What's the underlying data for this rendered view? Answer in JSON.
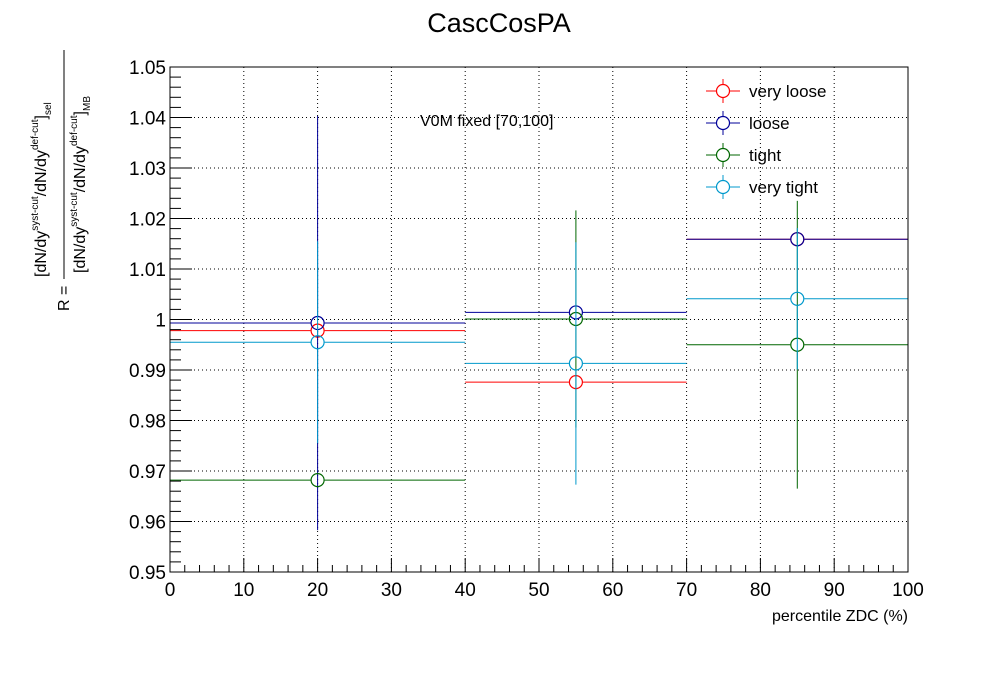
{
  "chart_data": {
    "type": "scatter",
    "title": "CascCosPA",
    "xlabel": "percentile ZDC (%)",
    "ylabel": {
      "prefix": "R =",
      "numerator": [
        "[dN/dy",
        "syst-cut",
        "/dN/dy",
        "def-cut",
        "]",
        "sel"
      ],
      "denominator": [
        "[dN/dy",
        "syst-cut",
        "/dN/dy",
        "def-cut",
        "]",
        "MB"
      ]
    },
    "annotation": "V0M fixed [70,100]",
    "xlim": [
      0,
      100
    ],
    "ylim": [
      0.95,
      1.05
    ],
    "xticks": [
      "0",
      "10",
      "20",
      "30",
      "40",
      "50",
      "60",
      "70",
      "80",
      "90",
      "100"
    ],
    "yticks": [
      "0.95",
      "0.96",
      "0.97",
      "0.98",
      "0.99",
      "1",
      "1.01",
      "1.02",
      "1.03",
      "1.04",
      "1.05"
    ],
    "grid": true,
    "legend_position": "top-right",
    "bins": [
      [
        0,
        40
      ],
      [
        40,
        70
      ],
      [
        70,
        100
      ]
    ],
    "x": [
      20,
      55,
      85
    ],
    "series": [
      {
        "name": "very loose",
        "color": "#ff0000",
        "y": [
          0.9978,
          0.9876,
          1.0159
        ],
        "yerr": [
          0.0,
          0.0,
          0.0
        ]
      },
      {
        "name": "loose",
        "color": "#000099",
        "y": [
          0.9993,
          1.0014,
          1.0159
        ],
        "yerr": [
          0.041,
          0.0,
          0.0
        ]
      },
      {
        "name": "tight",
        "color": "#006600",
        "y": [
          0.9682,
          1.0001,
          0.995
        ],
        "yerr": [
          0.0,
          0.0215,
          0.0285
        ]
      },
      {
        "name": "very tight",
        "color": "#0099cc",
        "y": [
          0.9955,
          0.9913,
          1.0041
        ],
        "yerr": [
          0.02,
          0.024,
          0.014
        ]
      }
    ]
  }
}
